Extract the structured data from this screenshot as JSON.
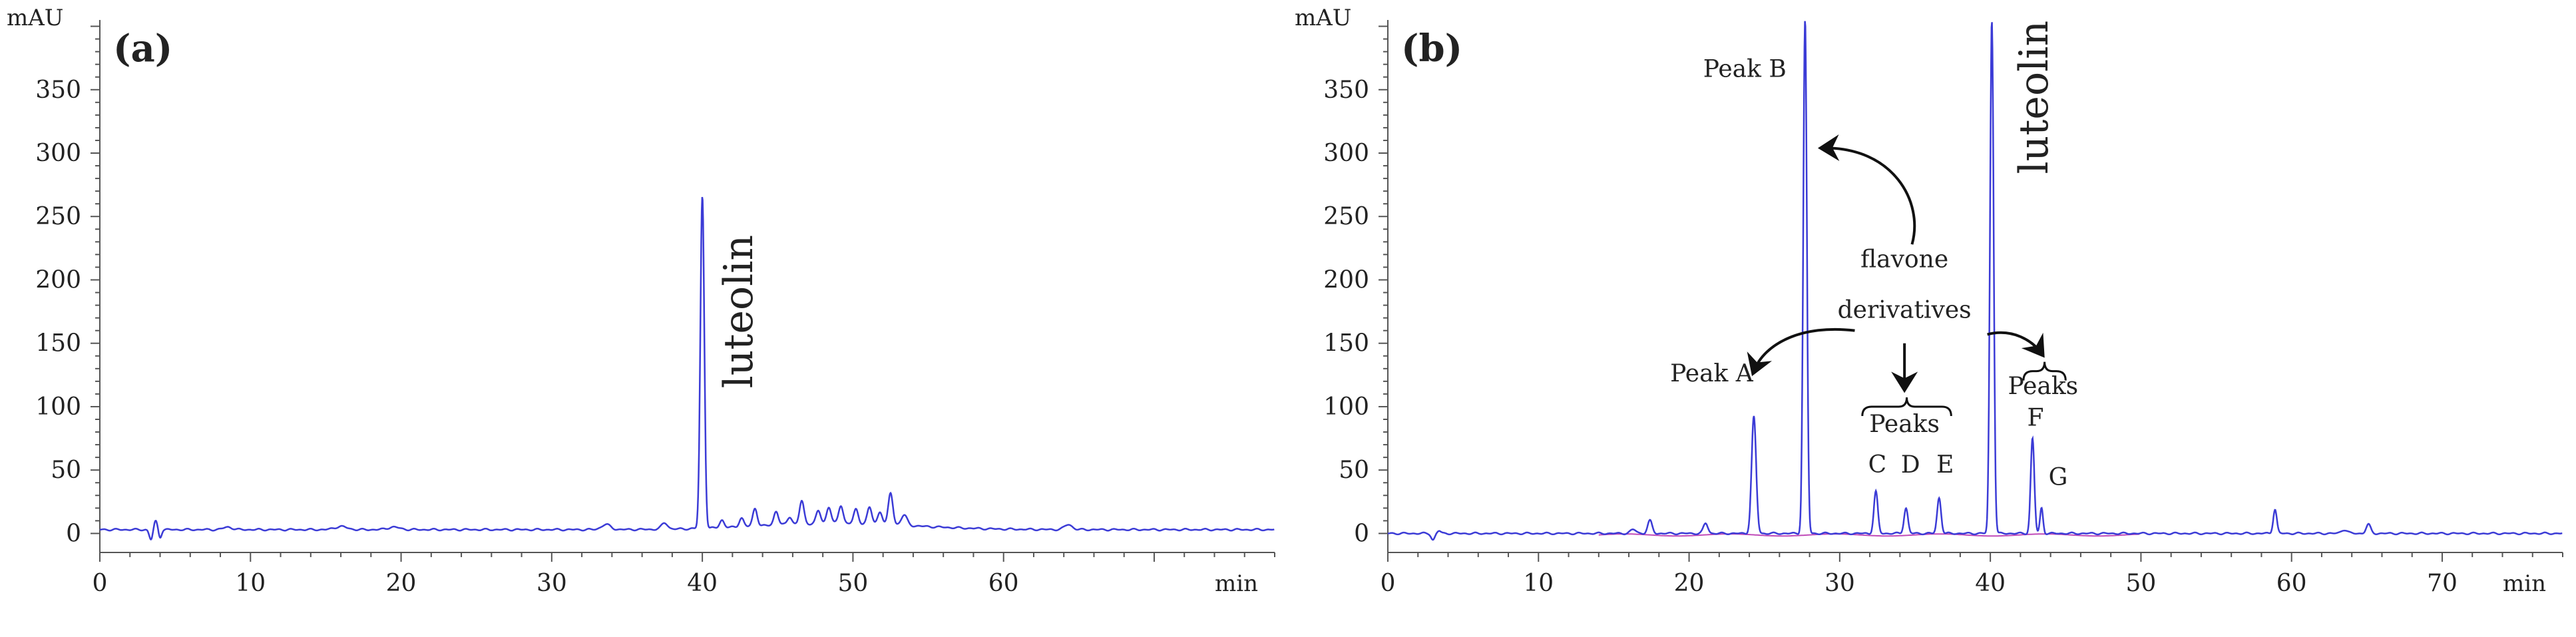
{
  "chart_data": [
    {
      "panel_label": "(a)",
      "type": "line",
      "ylabel": "mAU",
      "xlabel": "min",
      "xlim": [
        0,
        78
      ],
      "ylim": [
        -15,
        405
      ],
      "xticks": [
        0,
        10,
        20,
        30,
        40,
        50,
        60
      ],
      "yticks": [
        0,
        50,
        100,
        150,
        200,
        250,
        300,
        350
      ],
      "grid": false,
      "colors": {
        "trace": "#3b3bd6",
        "axis": "#555555"
      },
      "baseline": 3,
      "peaks": [
        {
          "x": 3.4,
          "y": -8,
          "w": 0.12
        },
        {
          "x": 3.7,
          "y": 7,
          "w": 0.12
        },
        {
          "x": 4.0,
          "y": -6,
          "w": 0.1
        },
        {
          "x": 8.5,
          "y": 2,
          "w": 0.3
        },
        {
          "x": 16.0,
          "y": 2.5,
          "w": 0.4
        },
        {
          "x": 19.5,
          "y": 2,
          "w": 0.4
        },
        {
          "x": 33.6,
          "y": 4,
          "w": 0.3
        },
        {
          "x": 37.5,
          "y": 5,
          "w": 0.2
        },
        {
          "x": 40.0,
          "y": 262,
          "w": 0.13,
          "label": "luteolin"
        },
        {
          "x": 41.3,
          "y": 6,
          "w": 0.15
        },
        {
          "x": 42.6,
          "y": 7,
          "w": 0.15
        },
        {
          "x": 43.5,
          "y": 14,
          "w": 0.15
        },
        {
          "x": 44.9,
          "y": 11,
          "w": 0.15
        },
        {
          "x": 45.8,
          "y": 6,
          "w": 0.15
        },
        {
          "x": 46.6,
          "y": 18,
          "w": 0.15
        },
        {
          "x": 47.7,
          "y": 10,
          "w": 0.15
        },
        {
          "x": 48.4,
          "y": 13,
          "w": 0.15
        },
        {
          "x": 49.2,
          "y": 14,
          "w": 0.15
        },
        {
          "x": 50.2,
          "y": 11,
          "w": 0.15
        },
        {
          "x": 51.1,
          "y": 13,
          "w": 0.15
        },
        {
          "x": 51.8,
          "y": 10,
          "w": 0.15
        },
        {
          "x": 52.5,
          "y": 25,
          "w": 0.15
        },
        {
          "x": 53.4,
          "y": 8,
          "w": 0.2
        },
        {
          "x": 64.3,
          "y": 4,
          "w": 0.25
        }
      ],
      "hump": {
        "center": 49,
        "sigma": 5,
        "height": 5
      },
      "annotations": [
        {
          "text": "luteolin",
          "x": 43.3,
          "y": 175,
          "rotate": -90
        }
      ]
    },
    {
      "panel_label": "(b)",
      "type": "line",
      "ylabel": "mAU",
      "xlabel": "min",
      "xlim": [
        0,
        78
      ],
      "ylim": [
        -15,
        405
      ],
      "xticks": [
        0,
        10,
        20,
        30,
        40,
        50,
        60,
        70
      ],
      "yticks": [
        0,
        50,
        100,
        150,
        200,
        250,
        300,
        350
      ],
      "grid": false,
      "colors": {
        "trace": "#3b3bd6",
        "secondary_trace": "#c04ab8",
        "axis": "#555555",
        "annotation": "#111111"
      },
      "baseline": 0,
      "peaks": [
        {
          "x": 3.0,
          "y": -5,
          "w": 0.12
        },
        {
          "x": 3.4,
          "y": 2,
          "w": 0.12
        },
        {
          "x": 16.3,
          "y": 3,
          "w": 0.2
        },
        {
          "x": 17.4,
          "y": 10,
          "w": 0.15
        },
        {
          "x": 21.1,
          "y": 8,
          "w": 0.15
        },
        {
          "x": 24.3,
          "y": 92,
          "w": 0.15,
          "label": "Peak A"
        },
        {
          "x": 27.7,
          "y": 405,
          "w": 0.12,
          "label": "Peak B"
        },
        {
          "x": 32.4,
          "y": 33,
          "w": 0.13,
          "label": "C"
        },
        {
          "x": 34.4,
          "y": 20,
          "w": 0.13,
          "label": "D"
        },
        {
          "x": 36.6,
          "y": 28,
          "w": 0.13,
          "label": "E"
        },
        {
          "x": 40.1,
          "y": 405,
          "w": 0.12,
          "label": "luteolin"
        },
        {
          "x": 42.8,
          "y": 75,
          "w": 0.12,
          "label": "F"
        },
        {
          "x": 43.4,
          "y": 20,
          "w": 0.1,
          "label": "G"
        },
        {
          "x": 58.9,
          "y": 19,
          "w": 0.12
        },
        {
          "x": 63.5,
          "y": 3,
          "w": 0.2
        },
        {
          "x": 65.1,
          "y": 7,
          "w": 0.15
        }
      ],
      "annotations": [
        {
          "text": "Peak B",
          "x": 23.7,
          "y": 360
        },
        {
          "text": "luteolin",
          "x": 43.8,
          "y": 344,
          "rotate": -90
        },
        {
          "text": "flavone",
          "x": 34.3,
          "y": 210
        },
        {
          "text": "derivatives",
          "x": 34.3,
          "y": 170
        },
        {
          "text": "Peak A",
          "x": 21.5,
          "y": 120
        },
        {
          "text": "Peaks",
          "x": 34.3,
          "y": 80
        },
        {
          "text": "C",
          "x": 32.5,
          "y": 48
        },
        {
          "text": "D",
          "x": 34.7,
          "y": 48
        },
        {
          "text": "E",
          "x": 37.0,
          "y": 48
        },
        {
          "text": "Peaks",
          "x": 43.5,
          "y": 110
        },
        {
          "text": "F",
          "x": 43.0,
          "y": 85
        },
        {
          "text": "G",
          "x": 44.5,
          "y": 38
        }
      ]
    }
  ]
}
